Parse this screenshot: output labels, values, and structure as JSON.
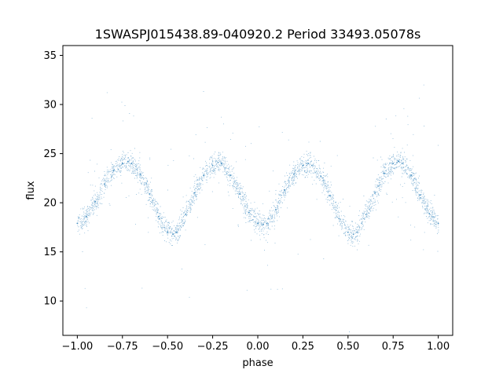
{
  "chart_data": {
    "type": "scatter",
    "title": "1SWASPJ015438.89-040920.2 Period 33493.05078s",
    "xlabel": "phase",
    "ylabel": "flux",
    "xlim": [
      -1.08,
      1.08
    ],
    "ylim": [
      6.5,
      36.0
    ],
    "xticks": [
      -1.0,
      -0.75,
      -0.5,
      -0.25,
      0.0,
      0.25,
      0.5,
      0.75,
      1.0
    ],
    "xtick_labels": [
      "−1.00",
      "−0.75",
      "−0.50",
      "−0.25",
      "0.00",
      "0.25",
      "0.50",
      "0.75",
      "1.00"
    ],
    "yticks": [
      10,
      15,
      20,
      25,
      30,
      35
    ],
    "ytick_labels": [
      "10",
      "15",
      "20",
      "25",
      "30",
      "35"
    ],
    "grid": false,
    "marker_color": "#1f77b4",
    "series": [
      {
        "x": [
          -1.0,
          -0.95,
          -0.9,
          -0.85,
          -0.8,
          -0.75,
          -0.72,
          -0.7,
          -0.65,
          -0.6,
          -0.55,
          -0.5,
          -0.47,
          -0.45,
          -0.4,
          -0.35,
          -0.3,
          -0.25,
          -0.22,
          -0.2,
          -0.15,
          -0.1,
          -0.05,
          0.0,
          0.03,
          0.05,
          0.1,
          0.15,
          0.2,
          0.25,
          0.28,
          0.3,
          0.35,
          0.4,
          0.45,
          0.5,
          0.53,
          0.55,
          0.6,
          0.65,
          0.7,
          0.75,
          0.78,
          0.8,
          0.85,
          0.9,
          0.95,
          1.0
        ],
        "y": [
          17.9,
          18.6,
          20.1,
          21.9,
          23.3,
          24.0,
          24.2,
          24.0,
          22.9,
          20.9,
          18.6,
          17.0,
          16.8,
          17.0,
          18.8,
          21.0,
          22.8,
          23.8,
          24.1,
          24.0,
          22.8,
          20.9,
          19.0,
          17.9,
          17.8,
          17.9,
          19.3,
          21.3,
          22.9,
          23.8,
          24.0,
          23.8,
          22.7,
          20.7,
          18.4,
          17.0,
          16.8,
          17.0,
          18.8,
          21.0,
          23.0,
          24.0,
          24.2,
          24.0,
          22.8,
          20.8,
          18.9,
          17.9
        ]
      }
    ]
  }
}
